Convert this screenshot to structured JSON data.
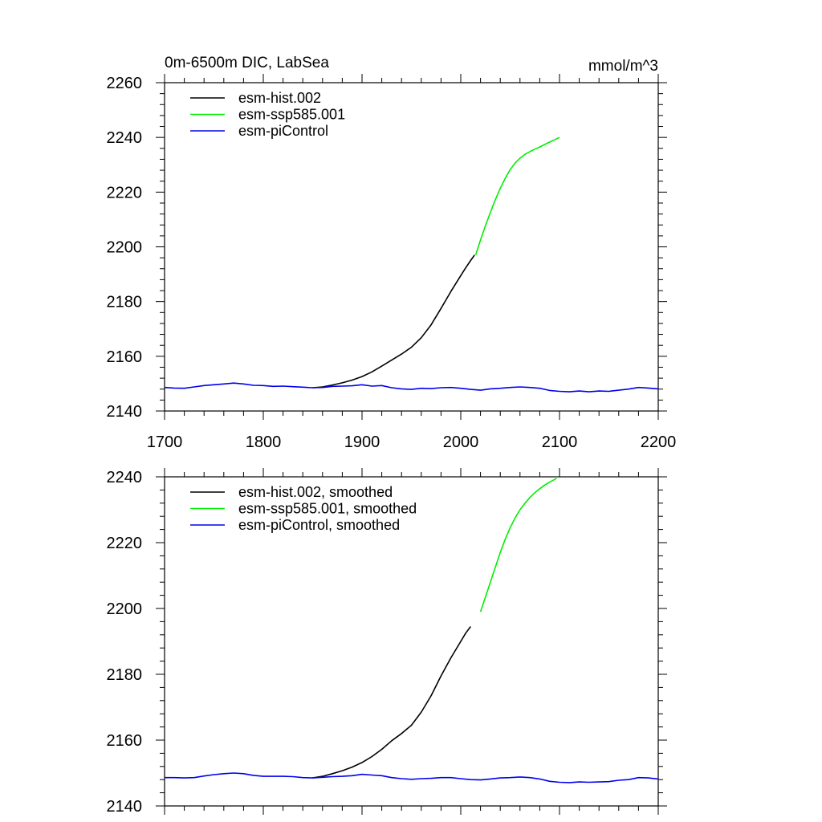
{
  "chart_data": [
    {
      "type": "line",
      "title": "0m-6500m DIC, LabSea",
      "units": "mmol/m^3",
      "xlim": [
        1700,
        2200
      ],
      "ylim": [
        2140,
        2260
      ],
      "x_ticks": [
        1700,
        1800,
        1900,
        2000,
        2100,
        2200
      ],
      "x_tick_labels": [
        "1700",
        "1800",
        "1900",
        "2000",
        "2100",
        "2200"
      ],
      "y_ticks": [
        2140,
        2160,
        2180,
        2200,
        2220,
        2240,
        2260
      ],
      "y_tick_labels": [
        "2140",
        "2160",
        "2180",
        "2200",
        "2220",
        "2240",
        "2260"
      ],
      "grid": false,
      "legend_position": "top-left",
      "series": [
        {
          "name": "esm-hist.002",
          "color": "#000000",
          "x": [
            1850,
            1860,
            1870,
            1880,
            1890,
            1900,
            1910,
            1920,
            1930,
            1940,
            1950,
            1960,
            1970,
            1980,
            1990,
            2000,
            2005,
            2010,
            2014
          ],
          "y": [
            2148.5,
            2148.8,
            2149.5,
            2150.3,
            2151.3,
            2152.6,
            2154.3,
            2156.4,
            2158.6,
            2160.8,
            2163.3,
            2166.8,
            2171.5,
            2177.5,
            2183.7,
            2189.5,
            2192.3,
            2195.0,
            2197.0
          ]
        },
        {
          "name": "esm-ssp585.001",
          "color": "#00ee00",
          "x": [
            2015,
            2020,
            2025,
            2030,
            2035,
            2040,
            2045,
            2050,
            2055,
            2060,
            2065,
            2070,
            2075,
            2080,
            2085,
            2090,
            2095,
            2100
          ],
          "y": [
            2197.0,
            2202.5,
            2207.8,
            2212.6,
            2217.2,
            2221.4,
            2225.0,
            2228.2,
            2230.6,
            2232.4,
            2233.8,
            2234.8,
            2235.7,
            2236.5,
            2237.4,
            2238.3,
            2239.1,
            2240.0
          ]
        },
        {
          "name": "esm-piControl",
          "color": "#0000ee",
          "x": [
            1700,
            1710,
            1720,
            1730,
            1740,
            1750,
            1760,
            1770,
            1780,
            1790,
            1800,
            1810,
            1820,
            1830,
            1840,
            1850,
            1860,
            1870,
            1880,
            1890,
            1900,
            1910,
            1920,
            1930,
            1940,
            1950,
            1960,
            1970,
            1980,
            1990,
            2000,
            2010,
            2020,
            2030,
            2040,
            2050,
            2060,
            2070,
            2080,
            2090,
            2100,
            2110,
            2120,
            2130,
            2140,
            2150,
            2160,
            2170,
            2180,
            2190,
            2200
          ],
          "y": [
            2148.6,
            2148.4,
            2148.3,
            2148.8,
            2149.3,
            2149.6,
            2149.9,
            2150.2,
            2149.9,
            2149.4,
            2149.3,
            2149.0,
            2149.1,
            2148.9,
            2148.7,
            2148.5,
            2148.6,
            2149.0,
            2149.1,
            2149.2,
            2149.6,
            2149.1,
            2149.3,
            2148.5,
            2148.1,
            2147.9,
            2148.3,
            2148.2,
            2148.5,
            2148.6,
            2148.3,
            2147.9,
            2147.6,
            2148.1,
            2148.3,
            2148.6,
            2148.8,
            2148.6,
            2148.3,
            2147.5,
            2147.2,
            2147.0,
            2147.3,
            2147.0,
            2147.3,
            2147.2,
            2147.6,
            2148.0,
            2148.6,
            2148.4,
            2148.1
          ]
        }
      ]
    },
    {
      "type": "line",
      "xlim": [
        1700,
        2200
      ],
      "ylim": [
        2140,
        2240
      ],
      "y_ticks": [
        2140,
        2160,
        2180,
        2200,
        2220,
        2240
      ],
      "y_tick_labels": [
        "2140",
        "2160",
        "2180",
        "2200",
        "2220",
        "2240"
      ],
      "grid": false,
      "legend_position": "top-left",
      "series": [
        {
          "name": "esm-hist.002, smoothed",
          "color": "#000000",
          "x": [
            1850,
            1860,
            1870,
            1880,
            1890,
            1900,
            1910,
            1920,
            1930,
            1940,
            1950,
            1960,
            1970,
            1980,
            1990,
            2000,
            2005,
            2010
          ],
          "y": [
            2148.5,
            2149.0,
            2149.8,
            2150.7,
            2151.8,
            2153.2,
            2155.0,
            2157.2,
            2159.8,
            2162.0,
            2164.5,
            2168.5,
            2173.5,
            2179.5,
            2185.0,
            2190.0,
            2192.5,
            2194.5
          ]
        },
        {
          "name": "esm-ssp585.001, smoothed",
          "color": "#00ee00",
          "x": [
            2020,
            2025,
            2030,
            2035,
            2040,
            2045,
            2050,
            2055,
            2060,
            2065,
            2070,
            2075,
            2080,
            2085,
            2090,
            2095,
            2097
          ],
          "y": [
            2199.0,
            2203.5,
            2208.0,
            2212.5,
            2217.0,
            2221.0,
            2224.5,
            2227.5,
            2230.0,
            2232.0,
            2233.7,
            2235.2,
            2236.4,
            2237.5,
            2238.4,
            2239.2,
            2239.5
          ]
        },
        {
          "name": "esm-piControl, smoothed",
          "color": "#0000ee",
          "x": [
            1700,
            1710,
            1720,
            1730,
            1740,
            1750,
            1760,
            1770,
            1780,
            1790,
            1800,
            1810,
            1820,
            1830,
            1840,
            1850,
            1860,
            1870,
            1880,
            1890,
            1900,
            1910,
            1920,
            1930,
            1940,
            1950,
            1960,
            1970,
            1980,
            1990,
            2000,
            2010,
            2020,
            2030,
            2040,
            2050,
            2060,
            2070,
            2080,
            2090,
            2100,
            2110,
            2120,
            2130,
            2140,
            2150,
            2160,
            2170,
            2180,
            2190,
            2200
          ],
          "y": [
            2148.6,
            2148.6,
            2148.5,
            2148.6,
            2149.1,
            2149.5,
            2149.8,
            2150.0,
            2149.8,
            2149.3,
            2149.0,
            2149.0,
            2149.0,
            2148.9,
            2148.6,
            2148.5,
            2148.7,
            2148.9,
            2149.0,
            2149.2,
            2149.6,
            2149.4,
            2149.2,
            2148.6,
            2148.3,
            2148.1,
            2148.3,
            2148.4,
            2148.6,
            2148.6,
            2148.3,
            2148.0,
            2147.9,
            2148.2,
            2148.5,
            2148.6,
            2148.8,
            2148.6,
            2148.2,
            2147.5,
            2147.2,
            2147.1,
            2147.3,
            2147.2,
            2147.3,
            2147.4,
            2147.8,
            2148.0,
            2148.6,
            2148.5,
            2148.2
          ]
        }
      ]
    }
  ]
}
